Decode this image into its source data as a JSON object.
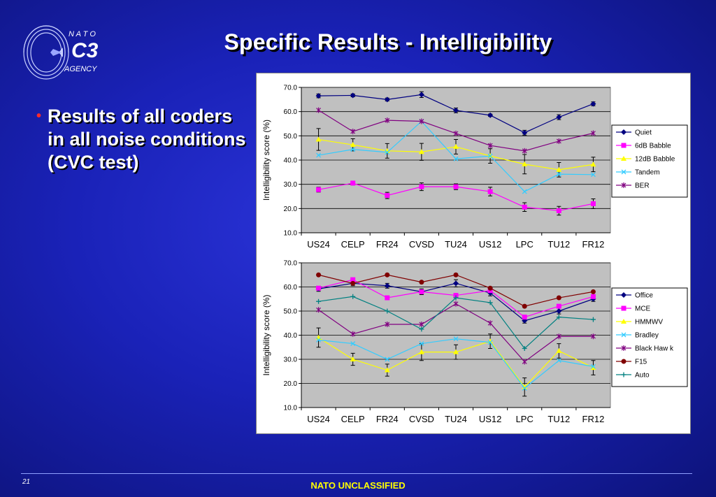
{
  "logo": {
    "line1": "N A T O",
    "line2": "C3",
    "line3": "AGENCY"
  },
  "title": "Specific Results - Intelligibility",
  "bullet": {
    "text": "Results of all coders in all noise conditions (CVC test)",
    "marker": "•"
  },
  "footer": {
    "page": "21",
    "classification": "NATO UNCLASSIFIED"
  },
  "colors": {
    "background": "#1a22b8",
    "title": "#ffffff",
    "bullet_marker": "#ff2a2a",
    "classification": "#ffff00",
    "plot_bg": "#c0c0c0"
  },
  "chart_data": [
    {
      "type": "line",
      "title": "",
      "xlabel": "",
      "ylabel": "Intelligibility score (%)",
      "ylim": [
        10,
        70
      ],
      "yticks": [
        "10.0",
        "20.0",
        "30.0",
        "40.0",
        "50.0",
        "60.0",
        "70.0"
      ],
      "grid": "horizontal",
      "legend": "right",
      "categories": [
        "US24",
        "CELP",
        "FR24",
        "CVSD",
        "TU24",
        "US12",
        "LPC",
        "TU12",
        "FR12"
      ],
      "series": [
        {
          "name": "Quiet",
          "color": "#000080",
          "marker": "diamond",
          "values": [
            66.5,
            66.7,
            65.0,
            67.0,
            60.5,
            58.5,
            51.3,
            57.7,
            63.2
          ],
          "err": [
            0.8,
            0.6,
            0.6,
            1.2,
            1.0,
            0.5,
            1.0,
            1.0,
            0.8
          ]
        },
        {
          "name": "6dB Babble",
          "color": "#ff00ff",
          "marker": "square",
          "values": [
            27.8,
            30.5,
            25.4,
            29.0,
            29.0,
            27.0,
            20.6,
            19.1,
            22.0
          ],
          "err": [
            1.0,
            0.8,
            1.3,
            1.6,
            1.2,
            1.8,
            1.8,
            1.8,
            2.0
          ]
        },
        {
          "name": "12dB Babble",
          "color": "#ffff00",
          "marker": "triangle",
          "values": [
            48.5,
            46.3,
            43.8,
            43.4,
            45.5,
            41.7,
            38.3,
            36.0,
            38.2
          ],
          "err": [
            4.5,
            2.5,
            3.0,
            3.5,
            3.0,
            3.0,
            4.0,
            3.0,
            3.0
          ]
        },
        {
          "name": "Tandem",
          "color": "#33ccff",
          "marker": "x",
          "values": [
            42.0,
            44.4,
            43.2,
            56.0,
            40.5,
            41.7,
            27.0,
            34.2,
            34.0
          ],
          "err": null
        },
        {
          "name": "BER",
          "color": "#800080",
          "marker": "star",
          "values": [
            60.6,
            51.8,
            56.4,
            56.0,
            51.0,
            46.0,
            43.8,
            47.8,
            51.1
          ],
          "err": null
        }
      ]
    },
    {
      "type": "line",
      "title": "",
      "xlabel": "",
      "ylabel": "Intelligibility score (%)",
      "ylim": [
        10,
        70
      ],
      "yticks": [
        "10.0",
        "20.0",
        "30.0",
        "40.0",
        "50.0",
        "60.0",
        "70.0"
      ],
      "grid": "horizontal",
      "legend": "right",
      "categories": [
        "US24",
        "CELP",
        "FR24",
        "CVSD",
        "TU24",
        "US12",
        "LPC",
        "TU12",
        "FR12"
      ],
      "series": [
        {
          "name": "Office",
          "color": "#000080",
          "marker": "diamond",
          "values": [
            59.2,
            61.5,
            60.5,
            58.0,
            61.5,
            57.5,
            46.0,
            50.0,
            55.0
          ],
          "err": [
            1.0,
            1.0,
            1.0,
            1.2,
            1.5,
            1.2,
            1.0,
            1.2,
            1.0
          ]
        },
        {
          "name": "MCE",
          "color": "#ff00ff",
          "marker": "square",
          "values": [
            59.5,
            63.0,
            55.5,
            58.0,
            56.5,
            58.5,
            47.5,
            52.0,
            56.0
          ],
          "err": null
        },
        {
          "name": "HMMWV",
          "color": "#ffff00",
          "marker": "triangle",
          "values": [
            39.0,
            30.0,
            25.5,
            33.0,
            33.0,
            37.5,
            18.5,
            33.5,
            26.5
          ],
          "err": [
            4.0,
            2.5,
            2.5,
            3.5,
            3.0,
            3.0,
            3.8,
            3.0,
            3.0
          ]
        },
        {
          "name": "Bradley",
          "color": "#33ccff",
          "marker": "x",
          "values": [
            38.0,
            36.5,
            30.0,
            36.5,
            38.5,
            37.0,
            18.0,
            29.5,
            27.0
          ],
          "err": null
        },
        {
          "name": "Black Haw k",
          "color": "#800080",
          "marker": "star",
          "values": [
            50.5,
            40.5,
            44.5,
            44.5,
            53.0,
            45.0,
            29.0,
            39.5,
            39.5
          ],
          "err": null
        },
        {
          "name": "F15",
          "color": "#800000",
          "marker": "circle",
          "values": [
            65.0,
            61.5,
            65.0,
            62.0,
            65.0,
            59.5,
            52.0,
            55.5,
            58.0
          ],
          "err": null
        },
        {
          "name": "Auto",
          "color": "#008080",
          "marker": "plus",
          "values": [
            54.0,
            56.0,
            50.0,
            42.5,
            55.5,
            53.5,
            34.5,
            47.5,
            46.5
          ],
          "err": null
        }
      ]
    }
  ]
}
